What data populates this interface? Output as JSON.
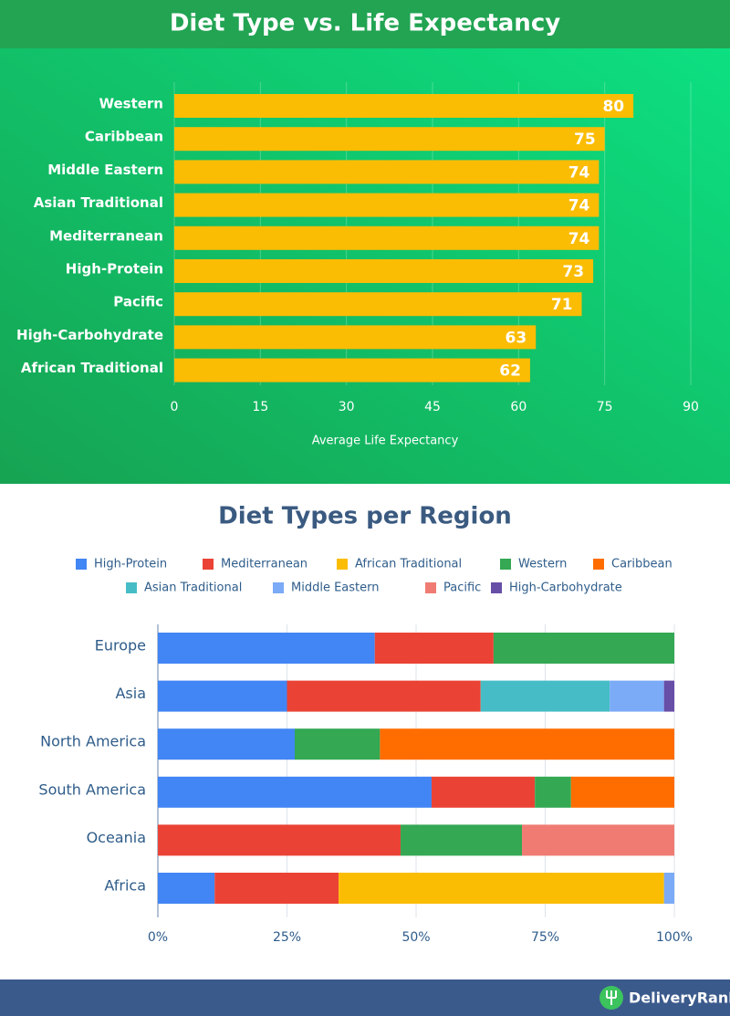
{
  "chart_data": [
    {
      "type": "hbar",
      "title": "Diet Type vs. Life Expectancy",
      "x_label": "Average Life Expectancy",
      "categories": [
        "Western",
        "Caribbean",
        "Middle Eastern",
        "Asian Traditional",
        "Mediterranean",
        "High-Protein",
        "Pacific",
        "High-Carbohydrate",
        "African Traditional"
      ],
      "values": [
        80,
        75,
        74,
        74,
        74,
        73,
        71,
        63,
        62
      ],
      "color": "#fbbc04",
      "xlim": [
        0,
        90
      ],
      "xticks": [
        0,
        15,
        30,
        45,
        60,
        75,
        90
      ],
      "grid": true
    },
    {
      "type": "stacked-hbar",
      "title": "Diet Types per Region",
      "categories": [
        "Europe",
        "Asia",
        "North America",
        "South America",
        "Oceania",
        "Africa"
      ],
      "series": [
        {
          "name": "High-Protein",
          "color": "#4285f4",
          "values": [
            42,
            25,
            26.5,
            53,
            0,
            11
          ]
        },
        {
          "name": "Mediterranean",
          "color": "#ea4335",
          "values": [
            23,
            37.5,
            0,
            20,
            47,
            24
          ]
        },
        {
          "name": "African Traditional",
          "color": "#fbbc04",
          "values": [
            0,
            0,
            0,
            0,
            0,
            63
          ]
        },
        {
          "name": "Western",
          "color": "#34a853",
          "values": [
            35,
            0,
            16.5,
            7,
            23.5,
            0
          ]
        },
        {
          "name": "Caribbean",
          "color": "#ff6d01",
          "values": [
            0,
            0,
            57,
            20,
            0,
            0
          ]
        },
        {
          "name": "Asian Traditional",
          "color": "#46bdc6",
          "values": [
            0,
            25,
            0,
            0,
            0,
            0
          ]
        },
        {
          "name": "Middle Eastern",
          "color": "#7baaf7",
          "values": [
            0,
            10.5,
            0,
            0,
            0,
            2
          ]
        },
        {
          "name": "Pacific",
          "color": "#f07b72",
          "values": [
            0,
            0,
            0,
            0,
            29.5,
            0
          ]
        },
        {
          "name": "High-Carbohydrate",
          "color": "#674ea7",
          "values": [
            0,
            2,
            0,
            0,
            0,
            0
          ]
        }
      ],
      "xlim": [
        0,
        100
      ],
      "xticks": [
        {
          "value": 0,
          "label": "0%"
        },
        {
          "value": 25,
          "label": "25%"
        },
        {
          "value": 50,
          "label": "50%"
        },
        {
          "value": 75,
          "label": "75%"
        },
        {
          "value": 100,
          "label": "100%"
        }
      ],
      "grid": true
    }
  ],
  "footer": {
    "brand": "DeliveryRank"
  }
}
